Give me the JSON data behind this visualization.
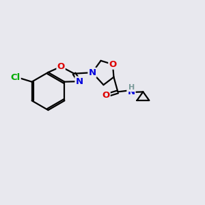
{
  "bg_color": "#e8e8ee",
  "bond_color": "#000000",
  "atom_colors": {
    "N": "#0000dd",
    "O": "#dd0000",
    "Cl": "#00aa00",
    "H": "#7a9a9a"
  },
  "figsize": [
    3.0,
    3.0
  ],
  "dpi": 100,
  "lw": 1.6,
  "fontsize": 9.5
}
